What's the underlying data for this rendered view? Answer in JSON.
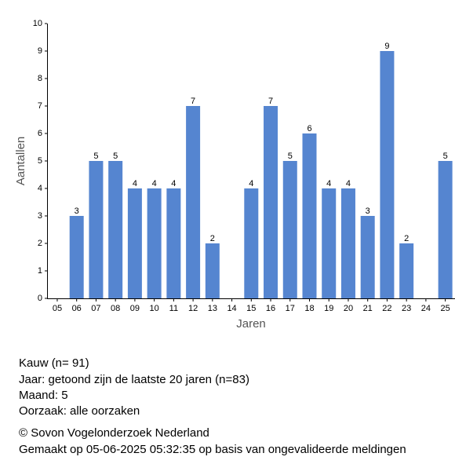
{
  "chart_data": {
    "type": "bar",
    "x_label": "Jaren",
    "y_label": "Aantallen",
    "categories": [
      "05",
      "06",
      "07",
      "08",
      "09",
      "10",
      "11",
      "12",
      "13",
      "14",
      "15",
      "16",
      "17",
      "18",
      "19",
      "20",
      "21",
      "22",
      "23",
      "24",
      "25"
    ],
    "values": [
      null,
      3,
      5,
      5,
      4,
      4,
      4,
      7,
      2,
      null,
      4,
      7,
      5,
      6,
      4,
      4,
      3,
      9,
      2,
      null,
      5
    ],
    "color": "#5585d0",
    "ylim": [
      0,
      10
    ],
    "yticks": [
      0,
      1,
      2,
      3,
      4,
      5,
      6,
      7,
      8,
      9,
      10
    ],
    "grid": false,
    "annotations": [
      "Kauw  (n= 91)",
      "Jaar: getoond zijn de laatste 20 jaren (n=83)",
      "Maand: 5",
      "Oorzaak: alle oorzaken",
      "© Sovon Vogelonderzoek Nederland",
      "Gemaakt op 05-06-2025 05:32:35 op basis van ongevalideerde meldingen"
    ]
  }
}
